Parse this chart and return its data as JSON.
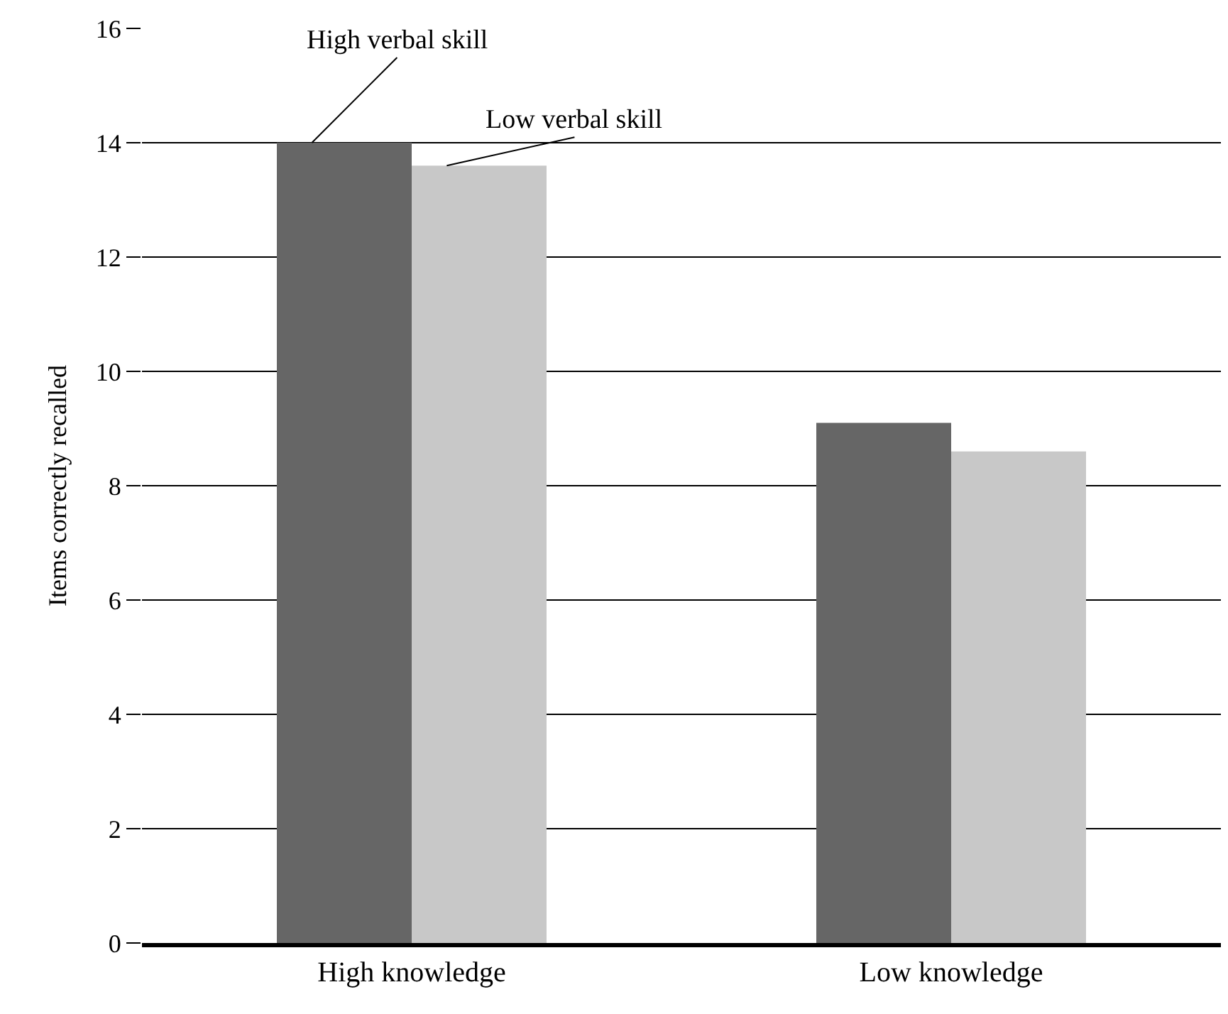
{
  "chart_data": {
    "type": "bar",
    "ylabel": "Items correctly recalled",
    "categories": [
      "High knowledge",
      "Low knowledge"
    ],
    "series": [
      {
        "name": "High verbal skill",
        "color": "#666666",
        "values": [
          14.0,
          9.1
        ]
      },
      {
        "name": "Low verbal skill",
        "color": "#c8c8c8",
        "values": [
          13.6,
          8.6
        ]
      }
    ],
    "ylim": [
      0,
      16
    ],
    "yticks": [
      0,
      2,
      4,
      6,
      8,
      10,
      12,
      14,
      16
    ],
    "grid": "y",
    "legend": false
  }
}
